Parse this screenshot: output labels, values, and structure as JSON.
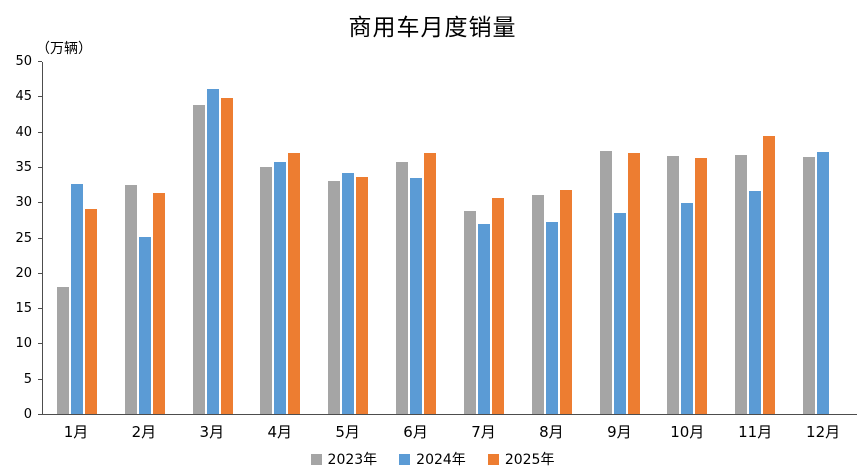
{
  "chart_data": {
    "type": "bar",
    "title": "商用车月度销量",
    "unit_label": "（万辆）",
    "categories": [
      "1月",
      "2月",
      "3月",
      "4月",
      "5月",
      "6月",
      "7月",
      "8月",
      "9月",
      "10月",
      "11月",
      "12月"
    ],
    "series": [
      {
        "name": "2023年",
        "color": "#A5A5A5",
        "values": [
          18.0,
          32.4,
          43.7,
          35.0,
          33.0,
          35.7,
          28.8,
          31.0,
          37.3,
          36.5,
          36.7,
          36.4
        ]
      },
      {
        "name": "2024年",
        "color": "#5B9BD5",
        "values": [
          32.6,
          25.1,
          46.0,
          35.7,
          34.2,
          33.4,
          26.9,
          27.2,
          28.5,
          29.9,
          31.6,
          37.1
        ]
      },
      {
        "name": "2025年",
        "color": "#ED7D31",
        "values": [
          29.1,
          31.3,
          44.8,
          37.0,
          33.6,
          37.0,
          30.6,
          31.8,
          37.0,
          36.3,
          39.4,
          null
        ]
      }
    ],
    "ylim": [
      0,
      50
    ],
    "ytick_step": 5,
    "grid": false,
    "legend_position": "bottom",
    "axis_color": "#4d4d4d"
  }
}
